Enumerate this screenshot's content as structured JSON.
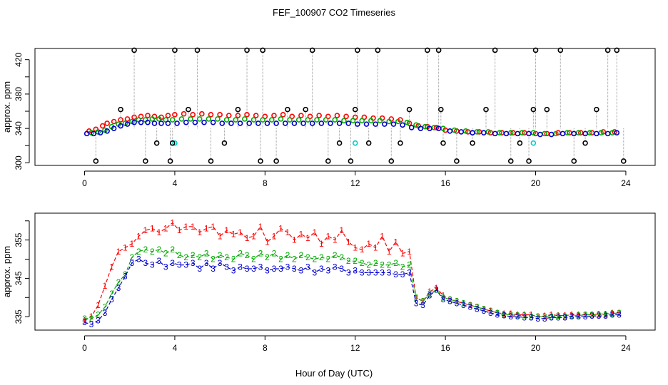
{
  "figure": {
    "title": "FEF_100907  CO2 Timeseries",
    "xlabel": "Hour of Day (UTC)"
  },
  "chart_data": [
    {
      "type": "scatter",
      "ylabel": "approx. ppm",
      "xlim": [
        -2.2,
        25.3
      ],
      "ylim": [
        297,
        433
      ],
      "xticks": [
        0,
        4,
        8,
        12,
        16,
        20,
        24
      ],
      "yticks": [
        300,
        320,
        340,
        360,
        380,
        400,
        420
      ],
      "ytick_labels": [
        "300",
        "340",
        "380",
        "420"
      ],
      "grid": false,
      "series": [
        {
          "id": "red",
          "color": "#ff0000",
          "marker": "circle",
          "x": [
            0.2,
            0.5,
            0.8,
            1.0,
            1.3,
            1.6,
            1.9,
            2.2,
            2.5,
            2.8,
            3.1,
            3.4,
            3.7,
            4.0,
            4.4,
            4.8,
            5.2,
            5.6,
            6.0,
            6.4,
            6.8,
            7.2,
            7.6,
            8.0,
            8.4,
            8.8,
            9.2,
            9.6,
            10.0,
            10.4,
            10.8,
            11.2,
            11.6,
            12.0,
            12.4,
            12.8,
            13.2,
            13.6,
            14.0,
            14.4,
            14.8,
            15.2,
            15.6,
            16.0,
            16.5,
            17.0,
            17.5,
            18.0,
            18.5,
            19.0,
            19.5,
            20.0,
            20.5,
            21.0,
            21.5,
            22.0,
            22.5,
            23.0,
            23.5
          ],
          "y": [
            337,
            339,
            343,
            346,
            348,
            350,
            351,
            353,
            354,
            355,
            354,
            353,
            355,
            356,
            357,
            356,
            357,
            356,
            356,
            355,
            355,
            356,
            355,
            354,
            355,
            356,
            354,
            355,
            354,
            355,
            354,
            355,
            354,
            353,
            353,
            352,
            352,
            351,
            350,
            346,
            343,
            342,
            341,
            338,
            337,
            336,
            336,
            335,
            335,
            335,
            335,
            334,
            334,
            335,
            335,
            335,
            335,
            336,
            336
          ]
        },
        {
          "id": "green",
          "color": "#00aa00",
          "marker": "circle",
          "x": [
            0.3,
            0.6,
            0.9,
            1.2,
            1.5,
            1.8,
            2.1,
            2.4,
            2.7,
            3.0,
            3.3,
            3.6,
            3.9,
            4.3,
            4.7,
            5.1,
            5.5,
            5.9,
            6.3,
            6.7,
            7.1,
            7.5,
            7.9,
            8.3,
            8.7,
            9.1,
            9.5,
            9.9,
            10.3,
            10.7,
            11.1,
            11.5,
            11.9,
            12.3,
            12.7,
            13.1,
            13.5,
            13.9,
            14.3,
            14.7,
            15.1,
            15.5,
            15.9,
            16.4,
            16.9,
            17.4,
            17.9,
            18.4,
            18.9,
            19.4,
            19.9,
            20.4,
            20.9,
            21.4,
            21.9,
            22.4,
            22.9,
            23.4
          ],
          "y": [
            335,
            336,
            338,
            342,
            345,
            346,
            348,
            350,
            350,
            351,
            351,
            350,
            350,
            351,
            351,
            351,
            351,
            351,
            350,
            350,
            351,
            350,
            350,
            350,
            351,
            350,
            350,
            350,
            350,
            350,
            350,
            349,
            349,
            349,
            349,
            349,
            348,
            348,
            347,
            344,
            342,
            341,
            340,
            338,
            337,
            336,
            336,
            335,
            335,
            335,
            335,
            334,
            334,
            335,
            335,
            335,
            335,
            335
          ]
        },
        {
          "id": "blue",
          "color": "#0000cc",
          "marker": "circle",
          "x": [
            0.1,
            0.4,
            0.7,
            1.0,
            1.3,
            1.6,
            1.9,
            2.2,
            2.5,
            2.8,
            3.1,
            3.4,
            3.7,
            4.1,
            4.5,
            4.9,
            5.3,
            5.7,
            6.1,
            6.5,
            6.9,
            7.3,
            7.7,
            8.1,
            8.5,
            8.9,
            9.3,
            9.7,
            10.1,
            10.5,
            10.9,
            11.3,
            11.7,
            12.1,
            12.5,
            12.9,
            13.3,
            13.7,
            14.1,
            14.5,
            14.9,
            15.3,
            15.7,
            16.2,
            16.7,
            17.2,
            17.7,
            18.2,
            18.7,
            19.2,
            19.7,
            20.2,
            20.7,
            21.2,
            21.7,
            22.2,
            22.7,
            23.2,
            23.6
          ],
          "y": [
            334,
            334,
            335,
            337,
            340,
            343,
            345,
            347,
            347,
            347,
            346,
            346,
            346,
            346,
            347,
            347,
            347,
            347,
            346,
            346,
            346,
            346,
            346,
            346,
            346,
            346,
            346,
            346,
            346,
            346,
            346,
            346,
            346,
            345,
            345,
            345,
            345,
            345,
            344,
            341,
            340,
            340,
            340,
            337,
            336,
            335,
            335,
            334,
            334,
            334,
            334,
            333,
            333,
            334,
            334,
            334,
            334,
            334,
            335
          ]
        },
        {
          "id": "cyan",
          "color": "#00cccc",
          "marker": "circle",
          "x": [
            4.0,
            12.0,
            19.9
          ],
          "y": [
            323,
            323,
            323
          ]
        },
        {
          "id": "black",
          "color": "#000000",
          "marker": "circle",
          "x": [
            0.5,
            1.6,
            2.2,
            2.7,
            3.2,
            3.8,
            3.9,
            4.0,
            4.6,
            5.0,
            5.6,
            6.2,
            6.8,
            7.2,
            7.8,
            7.9,
            8.5,
            9.0,
            9.8,
            10.1,
            10.8,
            11.3,
            11.8,
            12.0,
            12.1,
            12.6,
            13.0,
            13.6,
            14.0,
            14.4,
            15.2,
            15.7,
            15.8,
            15.9,
            16.5,
            17.2,
            17.8,
            18.2,
            18.9,
            19.3,
            19.7,
            19.9,
            20.0,
            20.5,
            21.1,
            21.7,
            22.2,
            22.7,
            23.2,
            23.6,
            23.9
          ],
          "y": [
            302,
            362,
            431,
            302,
            323,
            302,
            323,
            431,
            362,
            431,
            302,
            323,
            362,
            431,
            302,
            431,
            302,
            362,
            362,
            431,
            302,
            323,
            302,
            362,
            431,
            323,
            431,
            302,
            323,
            362,
            431,
            431,
            362,
            323,
            302,
            323,
            362,
            431,
            302,
            323,
            302,
            362,
            431,
            362,
            431,
            302,
            323,
            362,
            431,
            431,
            302
          ]
        }
      ]
    },
    {
      "type": "line",
      "ylabel": "approx. ppm",
      "xlim": [
        -2.2,
        25.3
      ],
      "ylim": [
        331.5,
        362
      ],
      "xticks": [
        0,
        4,
        8,
        12,
        16,
        20,
        24
      ],
      "yticks": [
        335,
        340,
        345,
        350,
        355,
        360
      ],
      "ytick_labels": [
        "335",
        "345",
        "355"
      ],
      "grid": false,
      "series": [
        {
          "id": "1",
          "label": "1",
          "color": "#ff0000",
          "marker": "1",
          "linestyle": "dashed",
          "x": [
            0.0,
            0.3,
            0.6,
            0.9,
            1.2,
            1.5,
            1.8,
            2.1,
            2.4,
            2.7,
            3.0,
            3.3,
            3.6,
            3.9,
            4.2,
            4.5,
            4.8,
            5.1,
            5.4,
            5.7,
            6.0,
            6.3,
            6.6,
            6.9,
            7.2,
            7.5,
            7.8,
            8.1,
            8.4,
            8.7,
            9.0,
            9.3,
            9.6,
            9.9,
            10.2,
            10.5,
            10.8,
            11.1,
            11.4,
            11.7,
            12.0,
            12.3,
            12.6,
            12.9,
            13.2,
            13.5,
            13.8,
            14.1,
            14.4,
            14.7,
            15.0,
            15.3,
            15.6,
            15.9,
            16.2,
            16.5,
            16.8,
            17.1,
            17.4,
            17.7,
            18.0,
            18.3,
            18.6,
            18.9,
            19.2,
            19.5,
            19.8,
            20.1,
            20.4,
            20.7,
            21.0,
            21.3,
            21.6,
            21.9,
            22.2,
            22.5,
            22.8,
            23.1,
            23.4,
            23.7
          ],
          "y": [
            334.0,
            335.0,
            338.0,
            343.0,
            348.0,
            352.0,
            353.0,
            354.0,
            356.0,
            357.5,
            358.0,
            357.0,
            358.0,
            359.5,
            357.5,
            358.5,
            358.5,
            357.0,
            358.0,
            358.5,
            356.0,
            357.5,
            356.5,
            357.0,
            355.5,
            356.0,
            358.5,
            354.5,
            356.0,
            358.0,
            357.0,
            355.0,
            356.5,
            355.5,
            357.0,
            354.0,
            356.0,
            355.0,
            357.5,
            354.5,
            353.0,
            352.5,
            354.0,
            353.0,
            356.0,
            352.0,
            354.5,
            351.5,
            352.0,
            340.0,
            339.0,
            341.5,
            342.5,
            340.5,
            339.5,
            339.0,
            338.5,
            338.0,
            337.5,
            337.0,
            336.5,
            336.0,
            335.8,
            335.8,
            335.5,
            335.5,
            335.5,
            335.0,
            335.2,
            335.5,
            335.3,
            335.3,
            335.5,
            335.5,
            335.5,
            335.5,
            335.7,
            335.7,
            336.0,
            336.0
          ]
        },
        {
          "id": "2",
          "label": "2",
          "color": "#00aa00",
          "marker": "2",
          "linestyle": "dashed",
          "x": [
            0.0,
            0.3,
            0.6,
            0.9,
            1.2,
            1.5,
            1.8,
            2.1,
            2.4,
            2.7,
            3.0,
            3.3,
            3.6,
            3.9,
            4.2,
            4.5,
            4.8,
            5.1,
            5.4,
            5.7,
            6.0,
            6.3,
            6.6,
            6.9,
            7.2,
            7.5,
            7.8,
            8.1,
            8.4,
            8.7,
            9.0,
            9.3,
            9.6,
            9.9,
            10.2,
            10.5,
            10.8,
            11.1,
            11.4,
            11.7,
            12.0,
            12.3,
            12.6,
            12.9,
            13.2,
            13.5,
            13.8,
            14.1,
            14.4,
            14.7,
            15.0,
            15.3,
            15.6,
            15.9,
            16.2,
            16.5,
            16.8,
            17.1,
            17.4,
            17.7,
            18.0,
            18.3,
            18.6,
            18.9,
            19.2,
            19.5,
            19.8,
            20.1,
            20.4,
            20.7,
            21.0,
            21.3,
            21.6,
            21.9,
            22.2,
            22.5,
            22.8,
            23.1,
            23.4,
            23.7
          ],
          "y": [
            334.5,
            334.5,
            335.5,
            337.5,
            341.0,
            344.0,
            346.0,
            350.5,
            352.0,
            352.5,
            352.0,
            352.5,
            351.5,
            352.5,
            351.0,
            350.5,
            351.0,
            350.5,
            351.5,
            350.0,
            351.0,
            350.5,
            350.0,
            351.5,
            351.0,
            350.0,
            351.5,
            350.5,
            351.5,
            350.0,
            351.0,
            350.0,
            351.0,
            350.5,
            350.0,
            350.5,
            350.0,
            351.0,
            350.5,
            349.5,
            349.5,
            349.0,
            348.5,
            349.0,
            348.5,
            348.5,
            349.0,
            348.0,
            348.5,
            340.0,
            339.0,
            341.0,
            342.0,
            340.0,
            339.5,
            339.0,
            338.5,
            338.0,
            337.5,
            337.0,
            336.5,
            336.0,
            335.5,
            335.5,
            335.3,
            335.3,
            335.0,
            335.0,
            335.0,
            335.0,
            335.2,
            335.0,
            335.2,
            335.3,
            335.5,
            335.5,
            335.5,
            335.5,
            335.8,
            336.0
          ]
        },
        {
          "id": "3",
          "label": "3",
          "color": "#0000cc",
          "marker": "3",
          "linestyle": "dashed",
          "x": [
            0.0,
            0.3,
            0.6,
            0.9,
            1.2,
            1.5,
            1.8,
            2.1,
            2.4,
            2.7,
            3.0,
            3.3,
            3.6,
            3.9,
            4.2,
            4.5,
            4.8,
            5.1,
            5.4,
            5.7,
            6.0,
            6.3,
            6.6,
            6.9,
            7.2,
            7.5,
            7.8,
            8.1,
            8.4,
            8.7,
            9.0,
            9.3,
            9.6,
            9.9,
            10.2,
            10.5,
            10.8,
            11.1,
            11.4,
            11.7,
            12.0,
            12.3,
            12.6,
            12.9,
            13.2,
            13.5,
            13.8,
            14.1,
            14.4,
            14.7,
            15.0,
            15.3,
            15.6,
            15.9,
            16.2,
            16.5,
            16.8,
            17.1,
            17.4,
            17.7,
            18.0,
            18.3,
            18.6,
            18.9,
            19.2,
            19.5,
            19.8,
            20.1,
            20.4,
            20.7,
            21.0,
            21.3,
            21.6,
            21.9,
            22.2,
            22.5,
            22.8,
            23.1,
            23.4,
            23.7
          ],
          "y": [
            333.5,
            333.0,
            334.0,
            336.0,
            339.5,
            342.5,
            345.5,
            349.0,
            350.0,
            349.0,
            348.5,
            349.5,
            348.0,
            349.0,
            348.5,
            348.5,
            349.0,
            347.5,
            349.0,
            347.5,
            349.0,
            348.0,
            347.0,
            348.0,
            347.5,
            347.5,
            348.0,
            347.0,
            347.5,
            347.5,
            348.0,
            347.5,
            347.0,
            348.0,
            346.5,
            347.5,
            347.0,
            348.0,
            347.5,
            346.5,
            347.0,
            346.5,
            346.5,
            346.5,
            346.5,
            346.5,
            346.0,
            346.0,
            346.5,
            338.5,
            338.0,
            340.5,
            342.0,
            339.5,
            339.0,
            338.5,
            338.0,
            337.5,
            337.0,
            336.5,
            336.0,
            335.5,
            335.3,
            335.0,
            335.0,
            334.8,
            334.8,
            334.5,
            334.5,
            334.8,
            334.8,
            334.8,
            335.0,
            335.0,
            335.0,
            335.2,
            335.2,
            335.2,
            335.5,
            335.5
          ]
        }
      ]
    }
  ]
}
